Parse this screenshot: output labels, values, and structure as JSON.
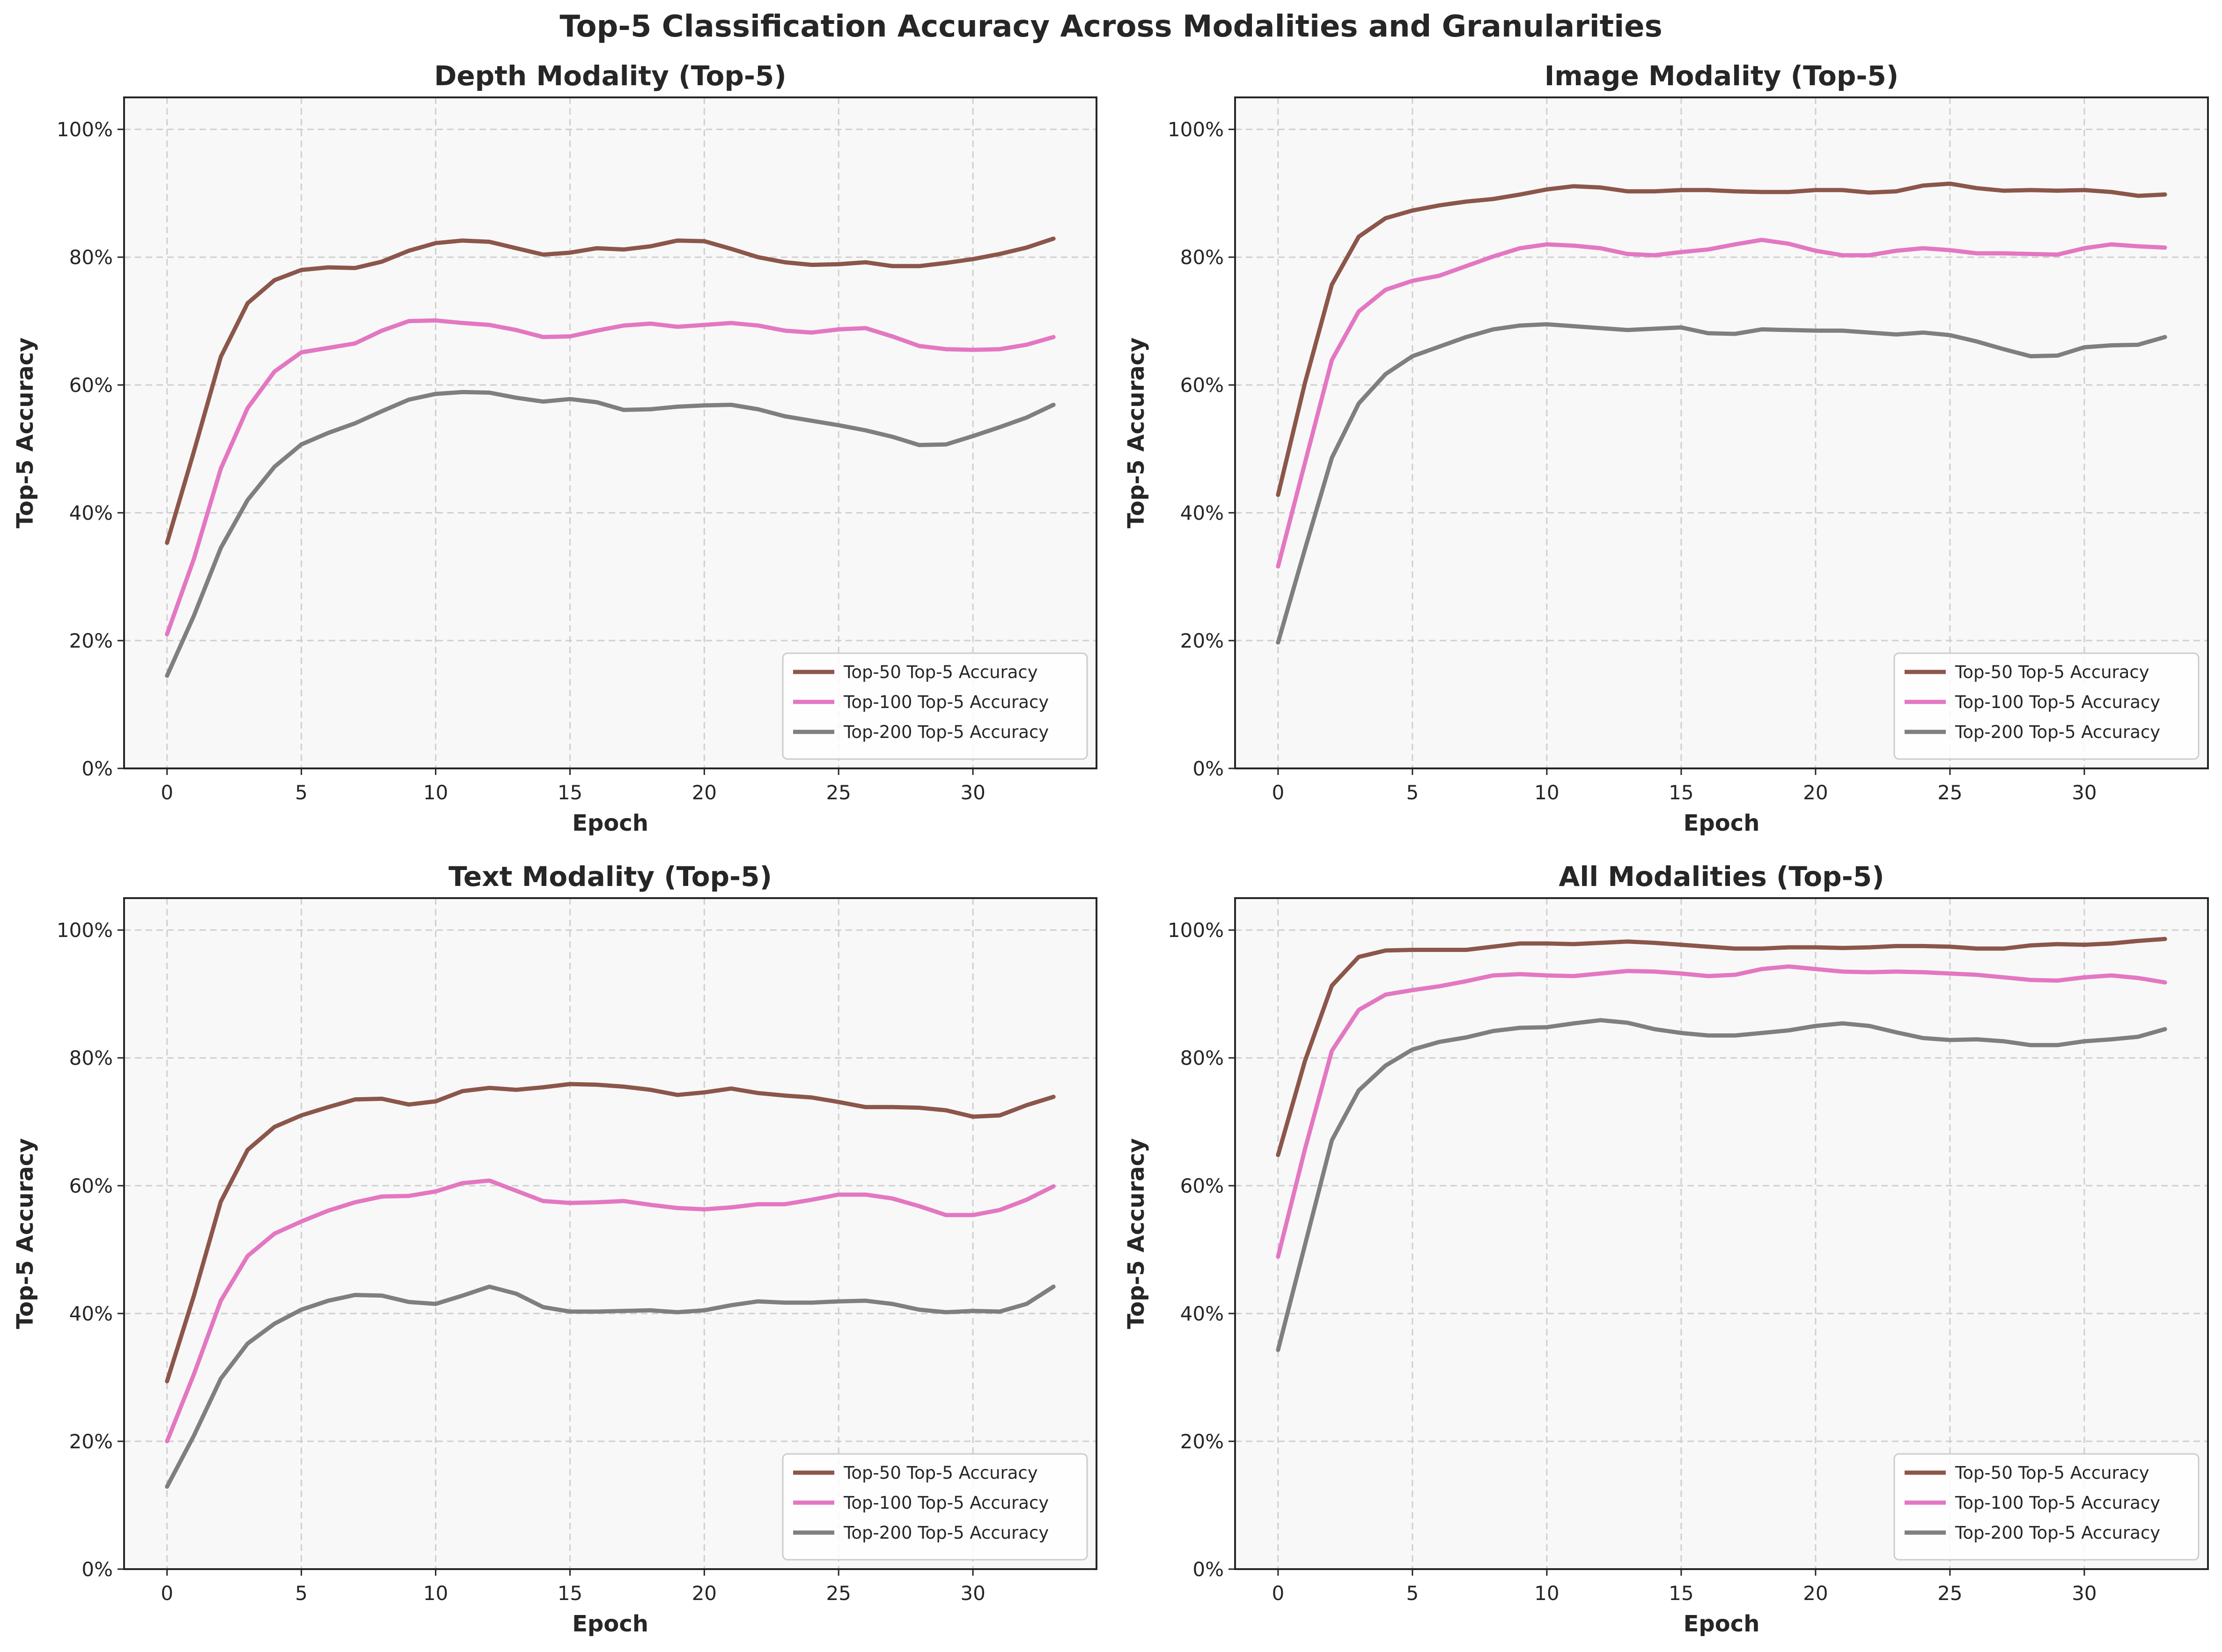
{
  "figure": {
    "suptitle": "Top-5 Classification Accuracy Across Modalities and Granularities"
  },
  "colors": {
    "top50": "#8c564b",
    "top100": "#e377c2",
    "top200": "#7f7f7f",
    "plot_bg": "#f8f8f8",
    "grid": "#cfcfcf"
  },
  "chart_data": [
    {
      "type": "line",
      "title": "Depth Modality (Top-5)",
      "xlabel": "Epoch",
      "ylabel": "Top-5 Accuracy",
      "xlim": [
        -1.6,
        34.6
      ],
      "ylim": [
        0,
        105
      ],
      "xticks": [
        0,
        5,
        10,
        15,
        20,
        25,
        30
      ],
      "yticks": [
        "0%",
        "20%",
        "40%",
        "60%",
        "80%",
        "100%"
      ],
      "grid": true,
      "legend_position": "lower-right",
      "x": [
        0,
        1,
        2,
        3,
        4,
        5,
        6,
        7,
        8,
        9,
        10,
        11,
        12,
        13,
        14,
        15,
        16,
        17,
        18,
        19,
        20,
        21,
        22,
        23,
        24,
        25,
        26,
        27,
        28,
        29,
        30,
        31,
        32,
        33
      ],
      "series": [
        {
          "name": "Top-50 Top-5 Accuracy",
          "color": "#8c564b",
          "values": [
            35.3,
            49.6,
            64.4,
            72.8,
            76.4,
            78.0,
            78.4,
            78.3,
            79.3,
            81.0,
            82.2,
            82.6,
            82.4,
            81.4,
            80.4,
            80.7,
            81.4,
            81.2,
            81.7,
            82.6,
            82.5,
            81.3,
            80.0,
            79.2,
            78.8,
            78.9,
            79.2,
            78.6,
            78.6,
            79.1,
            79.7,
            80.5,
            81.5,
            82.9
          ]
        },
        {
          "name": "Top-100 Top-5 Accuracy",
          "color": "#e377c2",
          "values": [
            21.0,
            32.8,
            46.9,
            56.4,
            62.1,
            65.1,
            65.8,
            66.5,
            68.5,
            70.0,
            70.1,
            69.7,
            69.4,
            68.6,
            67.5,
            67.6,
            68.5,
            69.3,
            69.6,
            69.1,
            69.4,
            69.7,
            69.3,
            68.5,
            68.2,
            68.7,
            68.9,
            67.6,
            66.1,
            65.6,
            65.5,
            65.6,
            66.3,
            67.5
          ]
        },
        {
          "name": "Top-200 Top-5 Accuracy",
          "color": "#7f7f7f",
          "values": [
            14.5,
            23.9,
            34.5,
            42.0,
            47.2,
            50.7,
            52.5,
            54.0,
            55.9,
            57.7,
            58.6,
            58.9,
            58.8,
            58.0,
            57.4,
            57.8,
            57.3,
            56.1,
            56.2,
            56.6,
            56.8,
            56.9,
            56.2,
            55.1,
            54.4,
            53.7,
            52.9,
            51.9,
            50.6,
            50.7,
            52.0,
            53.4,
            54.9,
            56.9
          ]
        }
      ]
    },
    {
      "type": "line",
      "title": "Image Modality (Top-5)",
      "xlabel": "Epoch",
      "ylabel": "Top-5 Accuracy",
      "xlim": [
        -1.6,
        34.6
      ],
      "ylim": [
        0,
        105
      ],
      "xticks": [
        0,
        5,
        10,
        15,
        20,
        25,
        30
      ],
      "yticks": [
        "0%",
        "20%",
        "40%",
        "60%",
        "80%",
        "100%"
      ],
      "grid": true,
      "legend_position": "lower-right",
      "x": [
        0,
        1,
        2,
        3,
        4,
        5,
        6,
        7,
        8,
        9,
        10,
        11,
        12,
        13,
        14,
        15,
        16,
        17,
        18,
        19,
        20,
        21,
        22,
        23,
        24,
        25,
        26,
        27,
        28,
        29,
        30,
        31,
        32,
        33
      ],
      "series": [
        {
          "name": "Top-50 Top-5 Accuracy",
          "color": "#8c564b",
          "values": [
            42.8,
            60.3,
            75.7,
            83.2,
            86.1,
            87.3,
            88.1,
            88.7,
            89.1,
            89.8,
            90.6,
            91.1,
            90.9,
            90.3,
            90.3,
            90.5,
            90.5,
            90.3,
            90.2,
            90.2,
            90.5,
            90.5,
            90.1,
            90.3,
            91.2,
            91.5,
            90.8,
            90.4,
            90.5,
            90.4,
            90.5,
            90.2,
            89.6,
            89.8
          ]
        },
        {
          "name": "Top-100 Top-5 Accuracy",
          "color": "#e377c2",
          "values": [
            31.6,
            47.8,
            63.9,
            71.5,
            74.9,
            76.3,
            77.1,
            78.6,
            80.1,
            81.4,
            82.0,
            81.8,
            81.4,
            80.5,
            80.3,
            80.8,
            81.2,
            82.0,
            82.7,
            82.1,
            81.0,
            80.3,
            80.3,
            81.0,
            81.4,
            81.1,
            80.6,
            80.6,
            80.5,
            80.4,
            81.4,
            82.0,
            81.7,
            81.5
          ]
        },
        {
          "name": "Top-200 Top-5 Accuracy",
          "color": "#7f7f7f",
          "values": [
            19.7,
            34.3,
            48.6,
            57.1,
            61.7,
            64.5,
            66.0,
            67.5,
            68.7,
            69.3,
            69.5,
            69.2,
            68.9,
            68.6,
            68.8,
            69.0,
            68.1,
            68.0,
            68.7,
            68.6,
            68.5,
            68.5,
            68.2,
            67.9,
            68.2,
            67.8,
            66.8,
            65.6,
            64.5,
            64.6,
            65.9,
            66.2,
            66.3,
            67.5
          ]
        }
      ]
    },
    {
      "type": "line",
      "title": "Text Modality (Top-5)",
      "xlabel": "Epoch",
      "ylabel": "Top-5 Accuracy",
      "xlim": [
        -1.6,
        34.6
      ],
      "ylim": [
        0,
        105
      ],
      "xticks": [
        0,
        5,
        10,
        15,
        20,
        25,
        30
      ],
      "yticks": [
        "0%",
        "20%",
        "40%",
        "60%",
        "80%",
        "100%"
      ],
      "grid": true,
      "legend_position": "lower-right",
      "x": [
        0,
        1,
        2,
        3,
        4,
        5,
        6,
        7,
        8,
        9,
        10,
        11,
        12,
        13,
        14,
        15,
        16,
        17,
        18,
        19,
        20,
        21,
        22,
        23,
        24,
        25,
        26,
        27,
        28,
        29,
        30,
        31,
        32,
        33
      ],
      "series": [
        {
          "name": "Top-50 Top-5 Accuracy",
          "color": "#8c564b",
          "values": [
            29.4,
            42.8,
            57.5,
            65.6,
            69.2,
            71.0,
            72.3,
            73.5,
            73.6,
            72.7,
            73.2,
            74.8,
            75.3,
            75.0,
            75.4,
            75.9,
            75.8,
            75.5,
            75.0,
            74.2,
            74.6,
            75.2,
            74.5,
            74.1,
            73.8,
            73.1,
            72.3,
            72.3,
            72.2,
            71.8,
            70.8,
            71.0,
            72.6,
            73.9
          ]
        },
        {
          "name": "Top-100 Top-5 Accuracy",
          "color": "#e377c2",
          "values": [
            20.0,
            30.5,
            42.0,
            49.0,
            52.5,
            54.4,
            56.1,
            57.4,
            58.3,
            58.4,
            59.1,
            60.4,
            60.8,
            59.2,
            57.6,
            57.3,
            57.4,
            57.6,
            57.0,
            56.5,
            56.3,
            56.6,
            57.1,
            57.1,
            57.8,
            58.6,
            58.6,
            58.0,
            56.8,
            55.4,
            55.4,
            56.2,
            57.8,
            59.9
          ]
        },
        {
          "name": "Top-200 Top-5 Accuracy",
          "color": "#7f7f7f",
          "values": [
            12.9,
            20.9,
            29.8,
            35.3,
            38.4,
            40.6,
            42.0,
            42.9,
            42.8,
            41.8,
            41.5,
            42.8,
            44.2,
            43.1,
            41.0,
            40.3,
            40.3,
            40.4,
            40.5,
            40.2,
            40.5,
            41.3,
            41.9,
            41.7,
            41.7,
            41.9,
            42.0,
            41.5,
            40.6,
            40.2,
            40.4,
            40.3,
            41.5,
            44.2
          ]
        }
      ]
    },
    {
      "type": "line",
      "title": "All Modalities (Top-5)",
      "xlabel": "Epoch",
      "ylabel": "Top-5 Accuracy",
      "xlim": [
        -1.6,
        34.6
      ],
      "ylim": [
        0,
        105
      ],
      "xticks": [
        0,
        5,
        10,
        15,
        20,
        25,
        30
      ],
      "yticks": [
        "0%",
        "20%",
        "40%",
        "60%",
        "80%",
        "100%"
      ],
      "grid": true,
      "legend_position": "lower-right",
      "x": [
        0,
        1,
        2,
        3,
        4,
        5,
        6,
        7,
        8,
        9,
        10,
        11,
        12,
        13,
        14,
        15,
        16,
        17,
        18,
        19,
        20,
        21,
        22,
        23,
        24,
        25,
        26,
        27,
        28,
        29,
        30,
        31,
        32,
        33
      ],
      "series": [
        {
          "name": "Top-50 Top-5 Accuracy",
          "color": "#8c564b",
          "values": [
            64.8,
            79.5,
            91.3,
            95.8,
            96.8,
            96.9,
            96.9,
            96.9,
            97.4,
            97.9,
            97.9,
            97.8,
            98.0,
            98.2,
            98.0,
            97.7,
            97.4,
            97.1,
            97.1,
            97.3,
            97.3,
            97.2,
            97.3,
            97.5,
            97.5,
            97.4,
            97.1,
            97.1,
            97.6,
            97.8,
            97.7,
            97.9,
            98.3,
            98.6
          ]
        },
        {
          "name": "Top-100 Top-5 Accuracy",
          "color": "#e377c2",
          "values": [
            48.9,
            65.7,
            81.1,
            87.5,
            89.9,
            90.6,
            91.2,
            92.0,
            92.9,
            93.1,
            92.9,
            92.8,
            93.2,
            93.6,
            93.5,
            93.2,
            92.8,
            93.0,
            93.9,
            94.3,
            93.9,
            93.5,
            93.4,
            93.5,
            93.4,
            93.2,
            93.0,
            92.6,
            92.2,
            92.1,
            92.6,
            92.9,
            92.5,
            91.8
          ]
        },
        {
          "name": "Top-200 Top-5 Accuracy",
          "color": "#7f7f7f",
          "values": [
            34.3,
            50.7,
            67.1,
            74.9,
            78.8,
            81.3,
            82.5,
            83.2,
            84.2,
            84.7,
            84.8,
            85.4,
            85.9,
            85.5,
            84.5,
            83.9,
            83.5,
            83.5,
            83.9,
            84.3,
            85.0,
            85.4,
            85.0,
            84.0,
            83.1,
            82.8,
            82.9,
            82.6,
            82.0,
            82.0,
            82.6,
            82.9,
            83.3,
            84.5
          ]
        }
      ]
    }
  ]
}
